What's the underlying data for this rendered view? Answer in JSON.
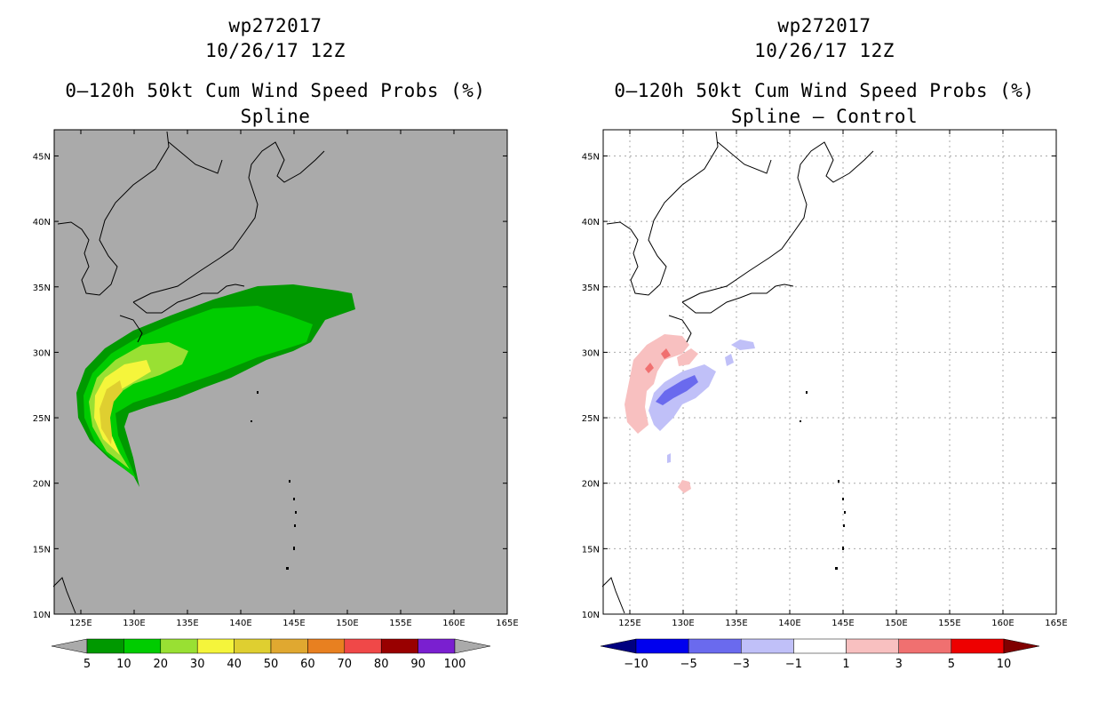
{
  "left": {
    "title_line1": "wp272017",
    "title_line2": "10/26/17 12Z",
    "title_line3": "0–120h 50kt Cum Wind Speed Probs (%)",
    "title_line4": "Spline",
    "background_color": "#aaaaaa",
    "colorbar": {
      "colors": [
        "#aaaaaa",
        "#009900",
        "#00cc00",
        "#99e033",
        "#f5f53b",
        "#dfcf30",
        "#e0a830",
        "#e88020",
        "#f04848",
        "#990000",
        "#7a1fd0",
        "#aaaaaa"
      ],
      "labels": [
        "5",
        "10",
        "20",
        "30",
        "40",
        "50",
        "60",
        "70",
        "80",
        "90",
        "100"
      ]
    }
  },
  "right": {
    "title_line1": "wp272017",
    "title_line2": "10/26/17 12Z",
    "title_line3": "0–120h 50kt Cum Wind Speed Probs (%)",
    "title_line4": "Spline – Control",
    "background_color": "#ffffff",
    "colorbar": {
      "colors": [
        "#000080",
        "#0000ee",
        "#6a6aee",
        "#c0c0f8",
        "#ffffff",
        "#f8c0c0",
        "#f07070",
        "#ee0000",
        "#800000"
      ],
      "labels": [
        "−10",
        "−5",
        "−3",
        "−1",
        "1",
        "3",
        "5",
        "10"
      ]
    }
  },
  "axes": {
    "x_ticks": [
      "125E",
      "130E",
      "135E",
      "140E",
      "145E",
      "150E",
      "155E",
      "160E",
      "165E"
    ],
    "y_ticks": [
      "10N",
      "15N",
      "20N",
      "25N",
      "30N",
      "35N",
      "40N",
      "45N"
    ],
    "lon_range": [
      122.5,
      165
    ],
    "lat_range": [
      10,
      47
    ]
  }
}
